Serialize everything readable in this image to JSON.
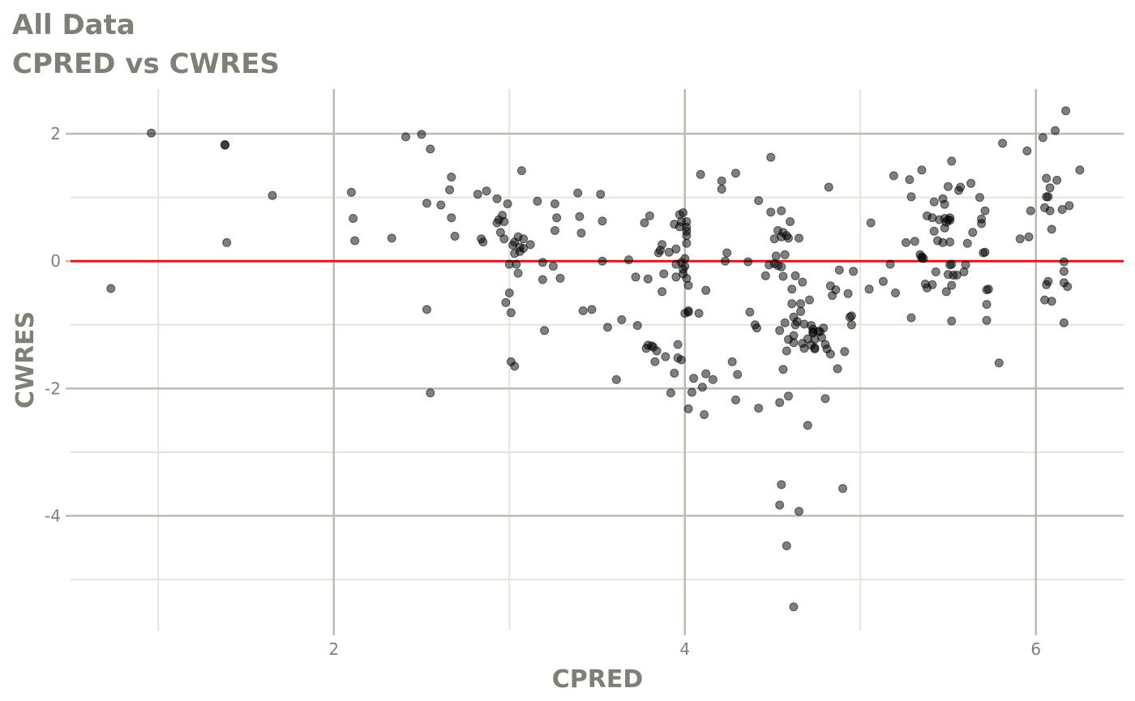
{
  "title": "All Data",
  "subtitle": "CPRED vs CWRES",
  "colors": {
    "major_grid": "#bcbcb2",
    "minor_grid": "#e4e6dc",
    "points": "#000000",
    "reference_line": "#e0161b",
    "text": "#7f7f78"
  },
  "chart_data": {
    "type": "scatter",
    "title": "All Data",
    "subtitle": "CPRED vs CWRES",
    "xlabel": "CPRED",
    "ylabel": "CWRES",
    "xlim": [
      0.5,
      6.5
    ],
    "ylim": [
      -5.8,
      2.7
    ],
    "x_ticks": [
      2,
      4,
      6
    ],
    "y_ticks": [
      -4,
      -2,
      0,
      2
    ],
    "x_tick_labels": [
      "2",
      "4",
      "6"
    ],
    "y_tick_labels": [
      "-4",
      "-2",
      "0",
      "2"
    ],
    "grid": true,
    "reference_line": {
      "y": 0
    },
    "points": [
      [
        0.73,
        -0.43
      ],
      [
        0.96,
        2.01
      ],
      [
        1.38,
        1.83
      ],
      [
        1.38,
        1.82
      ],
      [
        1.39,
        0.29
      ],
      [
        1.65,
        1.03
      ],
      [
        2.1,
        1.08
      ],
      [
        2.11,
        0.67
      ],
      [
        2.12,
        0.32
      ],
      [
        2.33,
        0.36
      ],
      [
        2.41,
        1.95
      ],
      [
        2.5,
        1.99
      ],
      [
        2.53,
        0.91
      ],
      [
        2.53,
        -0.76
      ],
      [
        2.55,
        1.76
      ],
      [
        2.55,
        -2.07
      ],
      [
        2.61,
        0.88
      ],
      [
        2.66,
        1.12
      ],
      [
        2.67,
        0.68
      ],
      [
        2.67,
        1.32
      ],
      [
        2.69,
        0.39
      ],
      [
        2.82,
        1.05
      ],
      [
        2.84,
        0.35
      ],
      [
        2.85,
        0.3
      ],
      [
        2.87,
        1.1
      ],
      [
        2.93,
        0.98
      ],
      [
        2.93,
        0.6
      ],
      [
        2.94,
        0.65
      ],
      [
        2.95,
        0.45
      ],
      [
        2.96,
        0.72
      ],
      [
        2.97,
        0.35
      ],
      [
        2.97,
        0.62
      ],
      [
        2.98,
        -0.65
      ],
      [
        2.99,
        0.9
      ],
      [
        3.0,
        -0.05
      ],
      [
        3.0,
        -0.5
      ],
      [
        3.01,
        -0.81
      ],
      [
        3.01,
        -1.58
      ],
      [
        3.02,
        0.25
      ],
      [
        3.03,
        0.12
      ],
      [
        3.03,
        0.3
      ],
      [
        3.03,
        -1.65
      ],
      [
        3.04,
        -0.05
      ],
      [
        3.05,
        0.38
      ],
      [
        3.05,
        -0.19
      ],
      [
        3.06,
        0.15
      ],
      [
        3.06,
        0.22
      ],
      [
        3.07,
        1.42
      ],
      [
        3.08,
        0.35
      ],
      [
        3.08,
        0.2
      ],
      [
        3.12,
        0.26
      ],
      [
        3.16,
        0.94
      ],
      [
        3.19,
        -0.29
      ],
      [
        3.19,
        -0.02
      ],
      [
        3.2,
        -1.09
      ],
      [
        3.25,
        -0.08
      ],
      [
        3.26,
        0.9
      ],
      [
        3.26,
        0.48
      ],
      [
        3.27,
        0.68
      ],
      [
        3.29,
        -0.27
      ],
      [
        3.39,
        1.07
      ],
      [
        3.4,
        0.7
      ],
      [
        3.41,
        0.44
      ],
      [
        3.42,
        -0.78
      ],
      [
        3.47,
        -0.76
      ],
      [
        3.52,
        1.05
      ],
      [
        3.53,
        0.63
      ],
      [
        3.53,
        0.0
      ],
      [
        3.56,
        -1.04
      ],
      [
        3.61,
        -1.86
      ],
      [
        3.64,
        -0.92
      ],
      [
        3.68,
        0.02
      ],
      [
        3.72,
        -0.25
      ],
      [
        3.73,
        -1.01
      ],
      [
        3.77,
        0.6
      ],
      [
        3.78,
        -1.37
      ],
      [
        3.79,
        -1.32
      ],
      [
        3.79,
        -0.28
      ],
      [
        3.8,
        0.71
      ],
      [
        3.81,
        -1.33
      ],
      [
        3.82,
        -1.35
      ],
      [
        3.83,
        -1.58
      ],
      [
        3.84,
        -1.41
      ],
      [
        3.85,
        0.13
      ],
      [
        3.86,
        0.17
      ],
      [
        3.87,
        0.26
      ],
      [
        3.87,
        -0.48
      ],
      [
        3.88,
        -0.2
      ],
      [
        3.89,
        -1.5
      ],
      [
        3.91,
        0.14
      ],
      [
        3.92,
        -2.07
      ],
      [
        3.94,
        0.58
      ],
      [
        3.94,
        -1.76
      ],
      [
        3.95,
        0.19
      ],
      [
        3.95,
        -0.25
      ],
      [
        3.95,
        -0.05
      ],
      [
        3.96,
        -1.52
      ],
      [
        3.96,
        -1.31
      ],
      [
        3.97,
        0.54
      ],
      [
        3.97,
        0.73
      ],
      [
        3.98,
        -1.55
      ],
      [
        3.98,
        0.62
      ],
      [
        3.98,
        -0.02
      ],
      [
        3.99,
        -0.13
      ],
      [
        3.99,
        -0.2
      ],
      [
        3.99,
        0.76
      ],
      [
        4.0,
        0.04
      ],
      [
        4.0,
        -0.82
      ],
      [
        4.0,
        -0.08
      ],
      [
        4.01,
        0.53
      ],
      [
        4.01,
        0.28
      ],
      [
        4.01,
        0.4
      ],
      [
        4.01,
        0.62
      ],
      [
        4.01,
        0.47
      ],
      [
        4.01,
        -0.27
      ],
      [
        4.02,
        -0.78
      ],
      [
        4.02,
        -0.8
      ],
      [
        4.02,
        -2.32
      ],
      [
        4.02,
        -0.38
      ],
      [
        4.04,
        -2.06
      ],
      [
        4.05,
        -1.84
      ],
      [
        4.08,
        -0.82
      ],
      [
        4.09,
        1.36
      ],
      [
        4.1,
        -1.98
      ],
      [
        4.11,
        -2.41
      ],
      [
        4.12,
        -1.77
      ],
      [
        4.12,
        -0.46
      ],
      [
        4.16,
        -1.86
      ],
      [
        4.21,
        1.13
      ],
      [
        4.21,
        1.26
      ],
      [
        4.23,
        0.0
      ],
      [
        4.24,
        0.13
      ],
      [
        4.27,
        -1.58
      ],
      [
        4.29,
        1.38
      ],
      [
        4.29,
        -2.18
      ],
      [
        4.3,
        -1.78
      ],
      [
        4.36,
        -0.01
      ],
      [
        4.37,
        -0.8
      ],
      [
        4.4,
        -1.0
      ],
      [
        4.41,
        -1.05
      ],
      [
        4.42,
        0.95
      ],
      [
        4.42,
        -2.31
      ],
      [
        4.46,
        -0.23
      ],
      [
        4.48,
        -0.06
      ],
      [
        4.49,
        1.63
      ],
      [
        4.49,
        0.77
      ],
      [
        4.51,
        0.35
      ],
      [
        4.51,
        -0.04
      ],
      [
        4.52,
        0.08
      ],
      [
        4.53,
        0.48
      ],
      [
        4.53,
        -0.07
      ],
      [
        4.54,
        -1.09
      ],
      [
        4.54,
        -3.83
      ],
      [
        4.54,
        -2.22
      ],
      [
        4.55,
        0.79
      ],
      [
        4.55,
        -3.51
      ],
      [
        4.55,
        0.38
      ],
      [
        4.55,
        -0.09
      ],
      [
        4.56,
        -0.24
      ],
      [
        4.56,
        0.45
      ],
      [
        4.56,
        -1.7
      ],
      [
        4.57,
        0.1
      ],
      [
        4.57,
        -0.97
      ],
      [
        4.58,
        -1.41
      ],
      [
        4.58,
        -4.47
      ],
      [
        4.58,
        0.4
      ],
      [
        4.59,
        -1.23
      ],
      [
        4.59,
        0.36
      ],
      [
        4.59,
        -2.12
      ],
      [
        4.6,
        0.62
      ],
      [
        4.61,
        -0.44
      ],
      [
        4.61,
        -0.67
      ],
      [
        4.62,
        -1.28
      ],
      [
        4.62,
        -5.43
      ],
      [
        4.62,
        -0.88
      ],
      [
        4.62,
        -1.17
      ],
      [
        4.63,
        -0.23
      ],
      [
        4.63,
        -1.0
      ],
      [
        4.64,
        -0.95
      ],
      [
        4.65,
        0.36
      ],
      [
        4.65,
        -3.93
      ],
      [
        4.66,
        -0.79
      ],
      [
        4.66,
        -0.67
      ],
      [
        4.67,
        -0.33
      ],
      [
        4.67,
        -1.29
      ],
      [
        4.68,
        -1.37
      ],
      [
        4.68,
        -0.99
      ],
      [
        4.7,
        -1.22
      ],
      [
        4.7,
        -2.58
      ],
      [
        4.71,
        -0.61
      ],
      [
        4.72,
        -1.01
      ],
      [
        4.72,
        -1.32
      ],
      [
        4.73,
        -1.13
      ],
      [
        4.73,
        -1.11
      ],
      [
        4.73,
        -1.07
      ],
      [
        4.74,
        -1.38
      ],
      [
        4.74,
        -1.36
      ],
      [
        4.74,
        -1.23
      ],
      [
        4.76,
        -1.1
      ],
      [
        4.77,
        -1.11
      ],
      [
        4.78,
        -1.2
      ],
      [
        4.79,
        -1.05
      ],
      [
        4.8,
        -1.31
      ],
      [
        4.8,
        -2.16
      ],
      [
        4.81,
        -1.38
      ],
      [
        4.82,
        1.16
      ],
      [
        4.83,
        -1.46
      ],
      [
        4.83,
        -0.39
      ],
      [
        4.84,
        -0.54
      ],
      [
        4.86,
        -0.45
      ],
      [
        4.87,
        -1.69
      ],
      [
        4.88,
        -0.14
      ],
      [
        4.9,
        -3.57
      ],
      [
        4.91,
        -1.42
      ],
      [
        4.93,
        -0.51
      ],
      [
        4.94,
        -0.88
      ],
      [
        4.95,
        -0.86
      ],
      [
        4.95,
        -1.0
      ],
      [
        4.96,
        -0.16
      ],
      [
        5.05,
        -0.44
      ],
      [
        5.06,
        0.6
      ],
      [
        5.13,
        -0.32
      ],
      [
        5.17,
        -0.05
      ],
      [
        5.19,
        1.34
      ],
      [
        5.2,
        -0.5
      ],
      [
        5.26,
        0.29
      ],
      [
        5.28,
        1.28
      ],
      [
        5.29,
        1.01
      ],
      [
        5.29,
        -0.89
      ],
      [
        5.31,
        0.31
      ],
      [
        5.34,
        0.1
      ],
      [
        5.35,
        0.05
      ],
      [
        5.35,
        0.07
      ],
      [
        5.35,
        1.43
      ],
      [
        5.36,
        0.04
      ],
      [
        5.37,
        -0.36
      ],
      [
        5.38,
        -0.42
      ],
      [
        5.38,
        0.71
      ],
      [
        5.41,
        0.68
      ],
      [
        5.41,
        -0.37
      ],
      [
        5.42,
        0.93
      ],
      [
        5.42,
        0.47
      ],
      [
        5.43,
        -0.17
      ],
      [
        5.44,
        0.32
      ],
      [
        5.45,
        0.65
      ],
      [
        5.47,
        0.98
      ],
      [
        5.47,
        0.29
      ],
      [
        5.48,
        0.89
      ],
      [
        5.48,
        0.52
      ],
      [
        5.48,
        0.67
      ],
      [
        5.49,
        0.61
      ],
      [
        5.49,
        -0.48
      ],
      [
        5.5,
        1.17
      ],
      [
        5.5,
        0.65
      ],
      [
        5.5,
        -0.21
      ],
      [
        5.51,
        0.68
      ],
      [
        5.51,
        0.3
      ],
      [
        5.51,
        0.64
      ],
      [
        5.51,
        -0.06
      ],
      [
        5.52,
        1.57
      ],
      [
        5.52,
        -0.94
      ],
      [
        5.52,
        -0.05
      ],
      [
        5.52,
        -0.38
      ],
      [
        5.53,
        -0.22
      ],
      [
        5.55,
        -0.22
      ],
      [
        5.56,
        1.11
      ],
      [
        5.57,
        1.16
      ],
      [
        5.59,
        -0.17
      ],
      [
        5.6,
        -0.06
      ],
      [
        5.61,
        0.28
      ],
      [
        5.63,
        1.22
      ],
      [
        5.64,
        0.45
      ],
      [
        5.68,
        1.0
      ],
      [
        5.69,
        0.66
      ],
      [
        5.69,
        0.59
      ],
      [
        5.7,
        0.13
      ],
      [
        5.71,
        0.14
      ],
      [
        5.71,
        0.79
      ],
      [
        5.72,
        -0.45
      ],
      [
        5.72,
        -0.68
      ],
      [
        5.72,
        -0.93
      ],
      [
        5.73,
        -0.44
      ],
      [
        5.79,
        -1.6
      ],
      [
        5.81,
        1.85
      ],
      [
        5.91,
        0.35
      ],
      [
        5.95,
        1.73
      ],
      [
        5.96,
        0.38
      ],
      [
        5.97,
        0.79
      ],
      [
        6.04,
        1.94
      ],
      [
        6.05,
        0.84
      ],
      [
        6.05,
        -0.61
      ],
      [
        6.06,
        -0.37
      ],
      [
        6.06,
        1.01
      ],
      [
        6.06,
        1.3
      ],
      [
        6.07,
        -0.32
      ],
      [
        6.07,
        1.01
      ],
      [
        6.08,
        1.15
      ],
      [
        6.08,
        0.79
      ],
      [
        6.09,
        -0.63
      ],
      [
        6.09,
        0.5
      ],
      [
        6.11,
        2.05
      ],
      [
        6.12,
        1.27
      ],
      [
        6.15,
        0.81
      ],
      [
        6.16,
        -0.97
      ],
      [
        6.16,
        -0.01
      ],
      [
        6.16,
        -0.16
      ],
      [
        6.16,
        -0.34
      ],
      [
        6.17,
        2.36
      ],
      [
        6.18,
        -0.4
      ],
      [
        6.19,
        0.87
      ],
      [
        6.25,
        1.43
      ]
    ]
  }
}
